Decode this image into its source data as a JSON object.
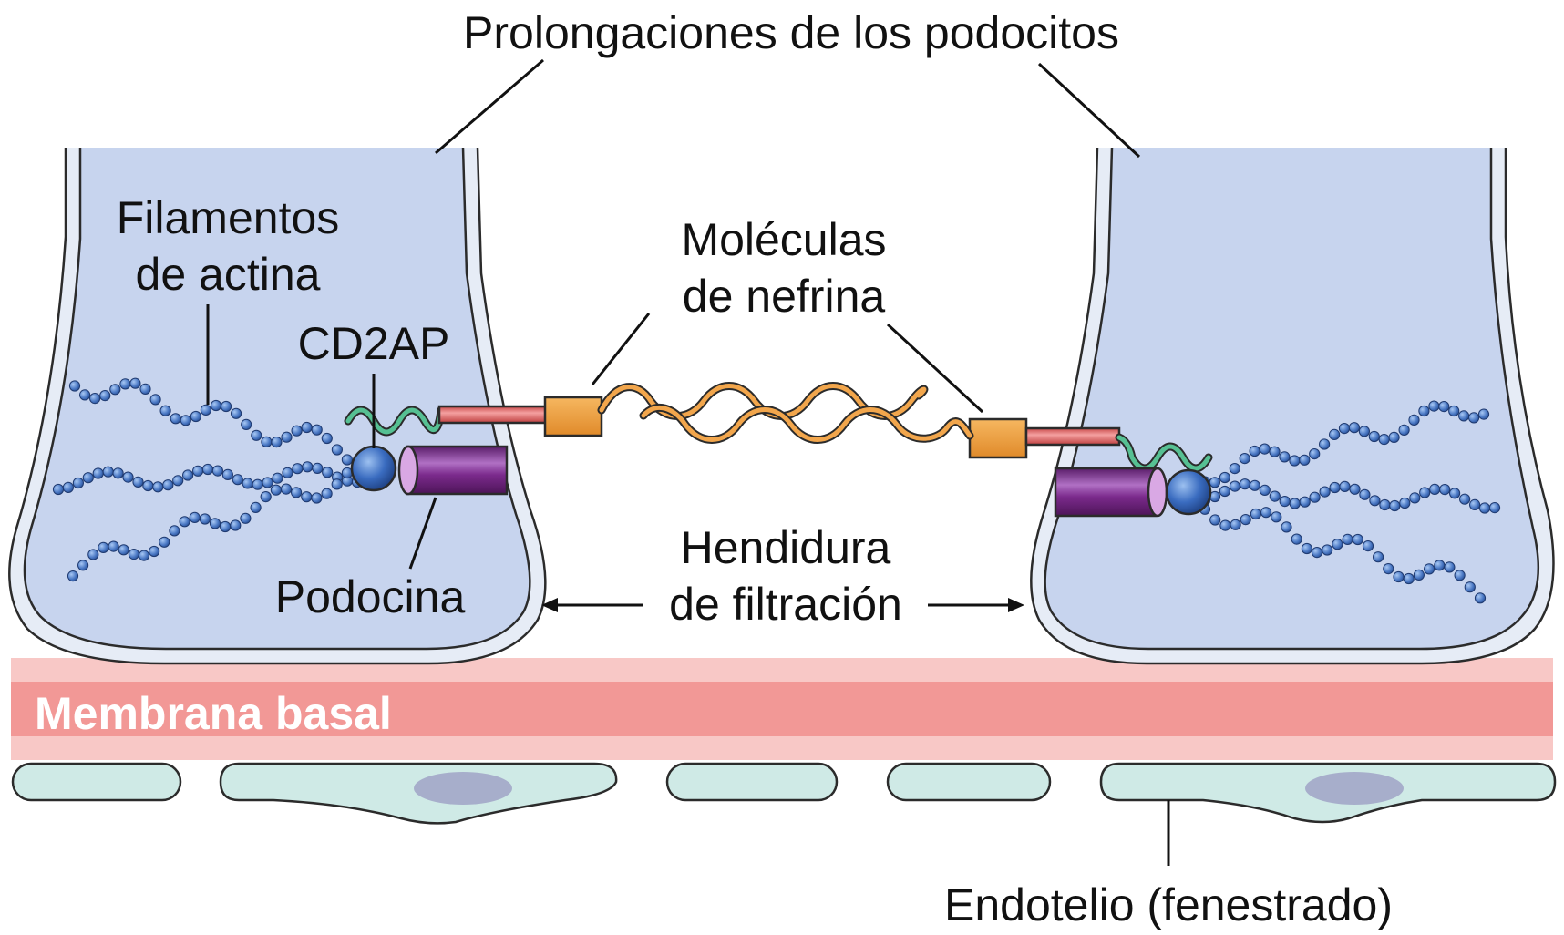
{
  "labels": {
    "podocyte_processes": "Prolongaciones de los podocitos",
    "actin_line1": "Filamentos",
    "actin_line2": "de actina",
    "cd2ap": "CD2AP",
    "nephrin_line1": "Moléculas",
    "nephrin_line2": "de nefrina",
    "podocin": "Podocina",
    "slit_line1": "Hendidura",
    "slit_line2": "de filtración",
    "basement_membrane": "Membrana basal",
    "endothelium": "Endotelio (fenestrado)"
  },
  "colors": {
    "podocyte_fill": "#c7d4ee",
    "podocyte_outline": "#2b2b2b",
    "actin_bead": "#4a78c4",
    "cd2ap_ball": "#3a6cc0",
    "podocin": "#7b2a8c",
    "nephrin_rod": "#e06a6a",
    "nephrin_box": "#f0a040",
    "nephrin_wave": "#e8953a",
    "linker_wave": "#3aa37a",
    "membrane_outer": "#f8c8c6",
    "membrane_core": "#f29896",
    "endothelium_fill": "#cfeae6",
    "nucleus": "#a7aecb"
  }
}
